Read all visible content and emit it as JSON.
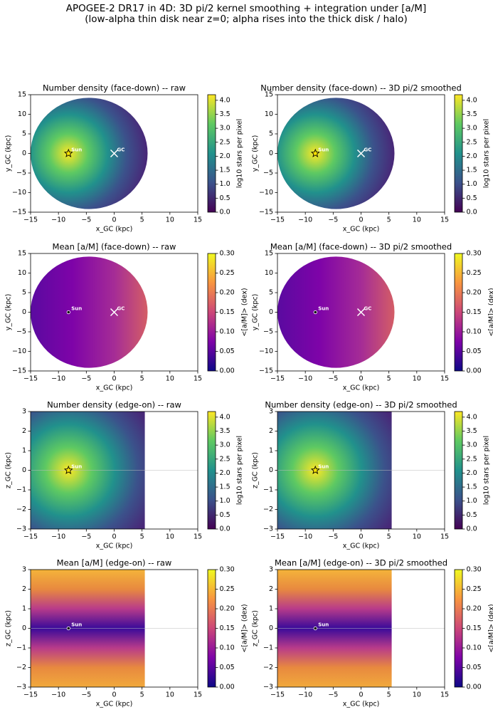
{
  "title": [
    "APOGEE-2 DR17 in 4D: 3D pi/2 kernel smoothing + integration under [a/M]",
    "(low-alpha thin disk near z=0; alpha rises into the thick disk / halo)"
  ],
  "chart_data": [
    {
      "type": "heatmap",
      "view": "face-down",
      "title": "Number density (face-down) -- raw",
      "x_label": "x_GC (kpc)",
      "y_label": "y_GC (kpc)",
      "xlim": [
        -15,
        15
      ],
      "ylim": [
        -15,
        15
      ],
      "xticks": [
        {
          "value": -15,
          "label": "−15"
        },
        {
          "value": -10,
          "label": "−10"
        },
        {
          "value": -5,
          "label": "−5"
        },
        0,
        5,
        10,
        15
      ],
      "yticks": [
        {
          "value": -15,
          "label": "−15"
        },
        {
          "value": -10,
          "label": "−10"
        },
        {
          "value": -5,
          "label": "−5"
        },
        0,
        5,
        10,
        15
      ],
      "colorbar": {
        "label": "log10 stars per pixel",
        "colormap": "viridis",
        "lim": [
          0,
          4.2
        ],
        "ticks": [
          {
            "value": 0,
            "label": "0.0"
          },
          {
            "value": 0.5,
            "label": "0.5"
          },
          {
            "value": 1,
            "label": "1.0"
          },
          {
            "value": 1.5,
            "label": "1.5"
          },
          {
            "value": 2,
            "label": "2.0"
          },
          {
            "value": 2.5,
            "label": "2.5"
          },
          {
            "value": 3,
            "label": "3.0"
          },
          {
            "value": 3.5,
            "label": "3.5"
          },
          {
            "value": 4,
            "label": "4.0"
          }
        ]
      },
      "annotations": [
        {
          "text": "Sun",
          "x": -8.2,
          "y": 0,
          "marker": "star"
        },
        {
          "text": "GC",
          "x": 0,
          "y": 0,
          "marker": "x"
        }
      ]
    },
    {
      "type": "heatmap",
      "view": "face-down",
      "title": "Number density (face-down) -- 3D pi/2 smoothed",
      "x_label": "x_GC (kpc)",
      "y_label": "y_GC (kpc)",
      "xlim": [
        -15,
        15
      ],
      "ylim": [
        -15,
        15
      ],
      "xticks": [
        {
          "value": -15,
          "label": "−15"
        },
        {
          "value": -10,
          "label": "−10"
        },
        {
          "value": -5,
          "label": "−5"
        },
        0,
        5,
        10,
        15
      ],
      "yticks": [
        {
          "value": -15,
          "label": "−15"
        },
        {
          "value": -10,
          "label": "−10"
        },
        {
          "value": -5,
          "label": "−5"
        },
        0,
        5,
        10,
        15
      ],
      "colorbar": {
        "label": "log10 stars per pixel",
        "colormap": "viridis",
        "lim": [
          0,
          4.2
        ],
        "ticks": [
          {
            "value": 0,
            "label": "0.0"
          },
          {
            "value": 0.5,
            "label": "0.5"
          },
          {
            "value": 1,
            "label": "1.0"
          },
          {
            "value": 1.5,
            "label": "1.5"
          },
          {
            "value": 2,
            "label": "2.0"
          },
          {
            "value": 2.5,
            "label": "2.5"
          },
          {
            "value": 3,
            "label": "3.0"
          },
          {
            "value": 3.5,
            "label": "3.5"
          },
          {
            "value": 4,
            "label": "4.0"
          }
        ]
      },
      "annotations": [
        {
          "text": "Sun",
          "x": -8.2,
          "y": 0,
          "marker": "star"
        },
        {
          "text": "GC",
          "x": 0,
          "y": 0,
          "marker": "x"
        }
      ]
    },
    {
      "type": "heatmap",
      "view": "face-down",
      "title": "Mean [a/M] (face-down) -- raw",
      "x_label": "x_GC (kpc)",
      "y_label": "y_GC (kpc)",
      "xlim": [
        -15,
        15
      ],
      "ylim": [
        -15,
        15
      ],
      "xticks": [
        {
          "value": -15,
          "label": "−15"
        },
        {
          "value": -10,
          "label": "−10"
        },
        {
          "value": -5,
          "label": "−5"
        },
        0,
        5,
        10,
        15
      ],
      "yticks": [
        {
          "value": -15,
          "label": "−15"
        },
        {
          "value": -10,
          "label": "−10"
        },
        {
          "value": -5,
          "label": "−5"
        },
        0,
        5,
        10,
        15
      ],
      "colorbar": {
        "label": "<[a/M]> (dex)",
        "colormap": "plasma",
        "lim": [
          0,
          0.3
        ],
        "ticks": [
          {
            "value": 0,
            "label": "0.00"
          },
          0.05,
          {
            "value": 0.1,
            "label": "0.10"
          },
          0.15,
          {
            "value": 0.2,
            "label": "0.20"
          },
          0.25,
          {
            "value": 0.3,
            "label": "0.30"
          }
        ]
      },
      "annotations": [
        {
          "text": "Sun",
          "x": -8.2,
          "y": 0,
          "marker": "dot"
        },
        {
          "text": "GC",
          "x": 0,
          "y": 0,
          "marker": "x"
        }
      ]
    },
    {
      "type": "heatmap",
      "view": "face-down",
      "title": "Mean [a/M] (face-down) -- 3D pi/2 smoothed",
      "x_label": "x_GC (kpc)",
      "y_label": "y_GC (kpc)",
      "xlim": [
        -15,
        15
      ],
      "ylim": [
        -15,
        15
      ],
      "xticks": [
        {
          "value": -15,
          "label": "−15"
        },
        {
          "value": -10,
          "label": "−10"
        },
        {
          "value": -5,
          "label": "−5"
        },
        0,
        5,
        10,
        15
      ],
      "yticks": [
        {
          "value": -15,
          "label": "−15"
        },
        {
          "value": -10,
          "label": "−10"
        },
        {
          "value": -5,
          "label": "−5"
        },
        0,
        5,
        10,
        15
      ],
      "colorbar": {
        "label": "<[a/M]> (dex)",
        "colormap": "plasma",
        "lim": [
          0,
          0.3
        ],
        "ticks": [
          {
            "value": 0,
            "label": "0.00"
          },
          0.05,
          {
            "value": 0.1,
            "label": "0.10"
          },
          0.15,
          {
            "value": 0.2,
            "label": "0.20"
          },
          0.25,
          {
            "value": 0.3,
            "label": "0.30"
          }
        ]
      },
      "annotations": [
        {
          "text": "Sun",
          "x": -8.2,
          "y": 0,
          "marker": "dot"
        },
        {
          "text": "GC",
          "x": 0,
          "y": 0,
          "marker": "x"
        }
      ]
    },
    {
      "type": "heatmap",
      "view": "edge-on",
      "title": "Number density (edge-on) -- raw",
      "x_label": "x_GC (kpc)",
      "y_label": "z_GC (kpc)",
      "xlim": [
        -15,
        15
      ],
      "ylim": [
        -3,
        3
      ],
      "xticks": [
        {
          "value": -15,
          "label": "−15"
        },
        {
          "value": -10,
          "label": "−10"
        },
        {
          "value": -5,
          "label": "−5"
        },
        0,
        5,
        10,
        15
      ],
      "yticks": [
        {
          "value": -3,
          "label": "−3"
        },
        {
          "value": -2,
          "label": "−2"
        },
        {
          "value": -1,
          "label": "−1"
        },
        0,
        1,
        2,
        3
      ],
      "colorbar": {
        "label": "log10 stars per pixel",
        "colormap": "viridis",
        "lim": [
          0,
          4.2
        ],
        "ticks": [
          {
            "value": 0,
            "label": "0.0"
          },
          {
            "value": 0.5,
            "label": "0.5"
          },
          {
            "value": 1,
            "label": "1.0"
          },
          {
            "value": 1.5,
            "label": "1.5"
          },
          {
            "value": 2,
            "label": "2.0"
          },
          {
            "value": 2.5,
            "label": "2.5"
          },
          {
            "value": 3,
            "label": "3.0"
          },
          {
            "value": 3.5,
            "label": "3.5"
          },
          {
            "value": 4,
            "label": "4.0"
          }
        ]
      },
      "annotations": [
        {
          "text": "Sun",
          "x": -8.2,
          "y": 0,
          "marker": "star"
        }
      ]
    },
    {
      "type": "heatmap",
      "view": "edge-on",
      "title": "Number density (edge-on) -- 3D pi/2 smoothed",
      "x_label": "x_GC (kpc)",
      "y_label": "z_GC (kpc)",
      "xlim": [
        -15,
        15
      ],
      "ylim": [
        -3,
        3
      ],
      "xticks": [
        {
          "value": -15,
          "label": "−15"
        },
        {
          "value": -10,
          "label": "−10"
        },
        {
          "value": -5,
          "label": "−5"
        },
        0,
        5,
        10,
        15
      ],
      "yticks": [
        {
          "value": -3,
          "label": "−3"
        },
        {
          "value": -2,
          "label": "−2"
        },
        {
          "value": -1,
          "label": "−1"
        },
        0,
        1,
        2,
        3
      ],
      "colorbar": {
        "label": "log10 stars per pixel",
        "colormap": "viridis",
        "lim": [
          0,
          4.2
        ],
        "ticks": [
          {
            "value": 0,
            "label": "0.0"
          },
          {
            "value": 0.5,
            "label": "0.5"
          },
          {
            "value": 1,
            "label": "1.0"
          },
          {
            "value": 1.5,
            "label": "1.5"
          },
          {
            "value": 2,
            "label": "2.0"
          },
          {
            "value": 2.5,
            "label": "2.5"
          },
          {
            "value": 3,
            "label": "3.0"
          },
          {
            "value": 3.5,
            "label": "3.5"
          },
          {
            "value": 4,
            "label": "4.0"
          }
        ]
      },
      "annotations": [
        {
          "text": "Sun",
          "x": -8.2,
          "y": 0,
          "marker": "star"
        }
      ]
    },
    {
      "type": "heatmap",
      "view": "edge-on",
      "title": "Mean [a/M] (edge-on) -- raw",
      "x_label": "x_GC (kpc)",
      "y_label": "z_GC (kpc)",
      "xlim": [
        -15,
        15
      ],
      "ylim": [
        -3,
        3
      ],
      "xticks": [
        {
          "value": -15,
          "label": "−15"
        },
        {
          "value": -10,
          "label": "−10"
        },
        {
          "value": -5,
          "label": "−5"
        },
        0,
        5,
        10,
        15
      ],
      "yticks": [
        {
          "value": -3,
          "label": "−3"
        },
        {
          "value": -2,
          "label": "−2"
        },
        {
          "value": -1,
          "label": "−1"
        },
        0,
        1,
        2,
        3
      ],
      "colorbar": {
        "label": "<[a/M]> (dex)",
        "colormap": "plasma",
        "lim": [
          0,
          0.3
        ],
        "ticks": [
          {
            "value": 0,
            "label": "0.00"
          },
          0.05,
          {
            "value": 0.1,
            "label": "0.10"
          },
          0.15,
          {
            "value": 0.2,
            "label": "0.20"
          },
          0.25,
          {
            "value": 0.3,
            "label": "0.30"
          }
        ]
      },
      "annotations": [
        {
          "text": "Sun",
          "x": -8.2,
          "y": 0,
          "marker": "dot"
        }
      ]
    },
    {
      "type": "heatmap",
      "view": "edge-on",
      "title": "Mean [a/M] (edge-on) -- 3D pi/2 smoothed",
      "x_label": "x_GC (kpc)",
      "y_label": "z_GC (kpc)",
      "xlim": [
        -15,
        15
      ],
      "ylim": [
        -3,
        3
      ],
      "xticks": [
        {
          "value": -15,
          "label": "−15"
        },
        {
          "value": -10,
          "label": "−10"
        },
        {
          "value": -5,
          "label": "−5"
        },
        0,
        5,
        10,
        15
      ],
      "yticks": [
        {
          "value": -3,
          "label": "−3"
        },
        {
          "value": -2,
          "label": "−2"
        },
        {
          "value": -1,
          "label": "−1"
        },
        0,
        1,
        2,
        3
      ],
      "colorbar": {
        "label": "<[a/M]> (dex)",
        "colormap": "plasma",
        "lim": [
          0,
          0.3
        ],
        "ticks": [
          {
            "value": 0,
            "label": "0.00"
          },
          0.05,
          {
            "value": 0.1,
            "label": "0.10"
          },
          0.15,
          {
            "value": 0.2,
            "label": "0.20"
          },
          0.25,
          {
            "value": 0.3,
            "label": "0.30"
          }
        ]
      },
      "annotations": [
        {
          "text": "Sun",
          "x": -8.2,
          "y": 0,
          "marker": "dot"
        }
      ]
    }
  ]
}
